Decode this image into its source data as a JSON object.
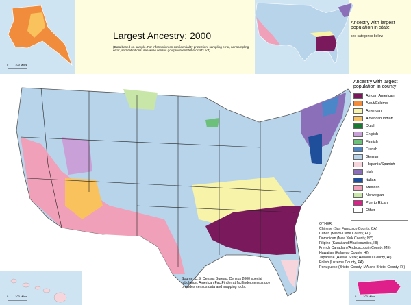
{
  "header": {
    "title": "Largest Ancestry: 2000",
    "subtitle": "(Data based on sample. For information on confidentiality protection, sampling error, nonsampling error, and definitions, see www.census.gov/prod/cen2000/doc/sf3.pdf)"
  },
  "state_inset": {
    "title": "Ancestry with largest population in state",
    "note": "see categories below"
  },
  "legend": {
    "title": "Ancestry with largest population in county",
    "items": [
      {
        "label": "African American",
        "color": "#7a1a5c"
      },
      {
        "label": "Aleut/Eskimo",
        "color": "#f08c3c"
      },
      {
        "label": "American",
        "color": "#f7f3a8"
      },
      {
        "label": "American Indian",
        "color": "#f9c25c"
      },
      {
        "label": "Dutch",
        "color": "#1a7a32"
      },
      {
        "label": "English",
        "color": "#c9a0d8"
      },
      {
        "label": "Finnish",
        "color": "#6cc07a"
      },
      {
        "label": "French",
        "color": "#4a86c8"
      },
      {
        "label": "German",
        "color": "#b8d4ea"
      },
      {
        "label": "Hispanic/Spanish",
        "color": "#f6d6dc"
      },
      {
        "label": "Irish",
        "color": "#8b6fb8"
      },
      {
        "label": "Italian",
        "color": "#1f4f9a"
      },
      {
        "label": "Mexican",
        "color": "#f0a0b8"
      },
      {
        "label": "Norwegian",
        "color": "#c8e6a8"
      },
      {
        "label": "Puerto Rican",
        "color": "#e0208a"
      },
      {
        "label": "Other",
        "color": "#ffffff"
      }
    ]
  },
  "other": {
    "title": "OTHER:",
    "items": [
      "Chinese (San Francisco County, CA)",
      "Cuban (Miami-Dade County, FL)",
      "Dominican (New York County, NY)",
      "Filipino (Kauai and Maui counties, HI)",
      "French Canadian (Androscoggin County, ME)",
      "Hawaiian (Kalawao County, HI)",
      "Japanese (Hawaii State; Honolulu County, HI)",
      "Polish (Luzerne County, PA)",
      "Portuguese (Bristol County, MA and Bristol County, RI)"
    ]
  },
  "source": "Source: U.S. Census Bureau, Census 2000 special tabulation. American FactFinder at factfinder.census.gov provides census data and mapping tools.",
  "scales": {
    "alaska": [
      "0",
      "100 Miles"
    ],
    "hawaii": [
      "0",
      "100 Miles"
    ],
    "puerto_rico": [
      "0",
      "100 Miles"
    ]
  }
}
